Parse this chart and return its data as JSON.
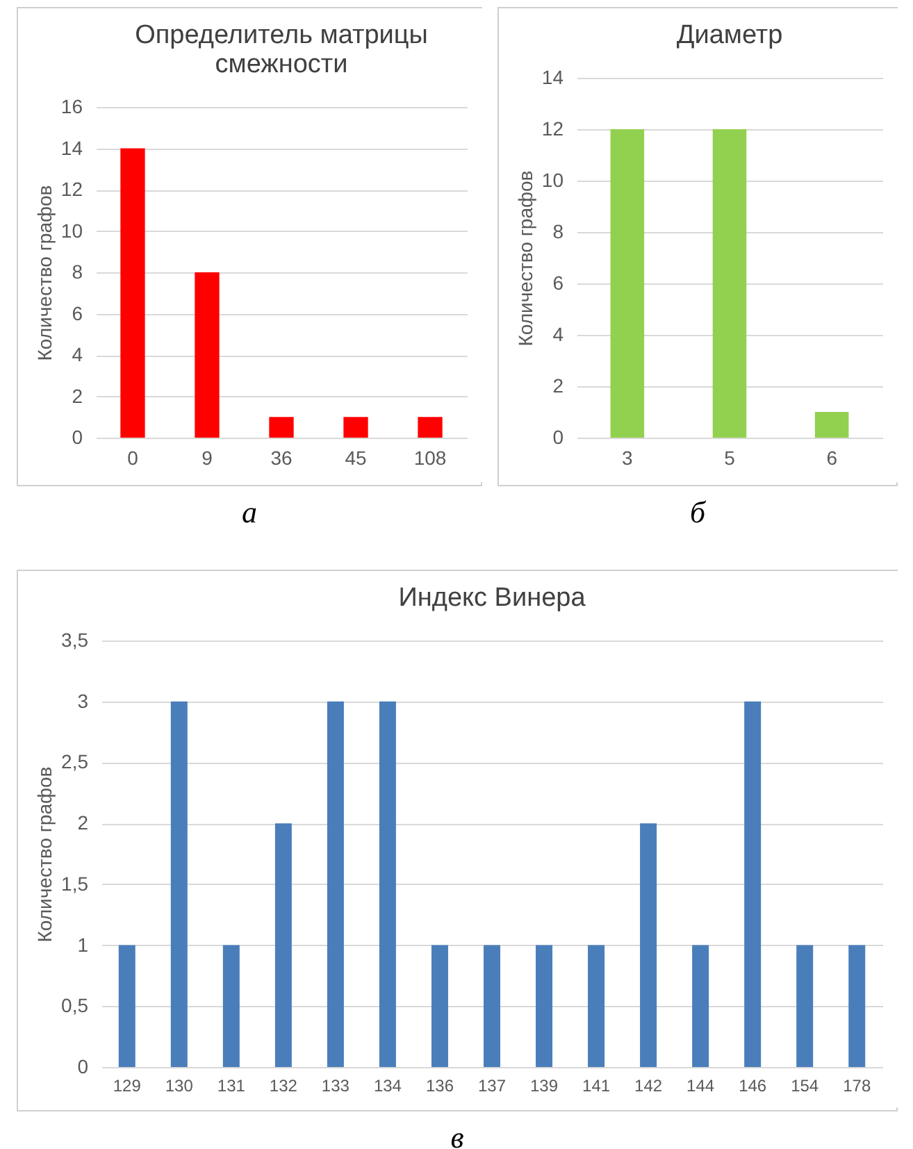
{
  "chart_data": [
    {
      "type": "bar",
      "title": "Определитель матрицы смежности",
      "ylabel": "Количество графов",
      "categories": [
        "0",
        "9",
        "36",
        "45",
        "108"
      ],
      "values": [
        14,
        8,
        1,
        1,
        1
      ],
      "color": "#ff0000",
      "ylim": [
        0,
        16
      ],
      "yticks": [
        0,
        2,
        4,
        6,
        8,
        10,
        12,
        14,
        16
      ],
      "grid": "y",
      "annotations": [
        "а"
      ]
    },
    {
      "type": "bar",
      "title": "Диаметр",
      "ylabel": "Количество графов",
      "categories": [
        "3",
        "5",
        "6"
      ],
      "values": [
        12,
        12,
        1
      ],
      "color": "#92d050",
      "ylim": [
        0,
        14
      ],
      "yticks": [
        0,
        2,
        4,
        6,
        8,
        10,
        12,
        14
      ],
      "grid": "y",
      "annotations": [
        "б"
      ]
    },
    {
      "type": "bar",
      "title": "Индекс Винера",
      "ylabel": "Количество графов",
      "categories": [
        "129",
        "130",
        "131",
        "132",
        "133",
        "134",
        "136",
        "137",
        "139",
        "141",
        "142",
        "144",
        "146",
        "154",
        "178"
      ],
      "values": [
        1,
        3,
        1,
        2,
        3,
        3,
        1,
        1,
        1,
        1,
        2,
        1,
        3,
        1,
        1
      ],
      "color": "#4a7ebb",
      "ylim": [
        0,
        3.5
      ],
      "yticks": [
        0,
        {
          "value": 0.5,
          "label": "0,5"
        },
        1,
        {
          "value": 1.5,
          "label": "1,5"
        },
        2,
        {
          "value": 2.5,
          "label": "2,5"
        },
        3,
        {
          "value": 3.5,
          "label": "3,5"
        }
      ],
      "grid": "y",
      "annotations": [
        "в"
      ]
    }
  ]
}
